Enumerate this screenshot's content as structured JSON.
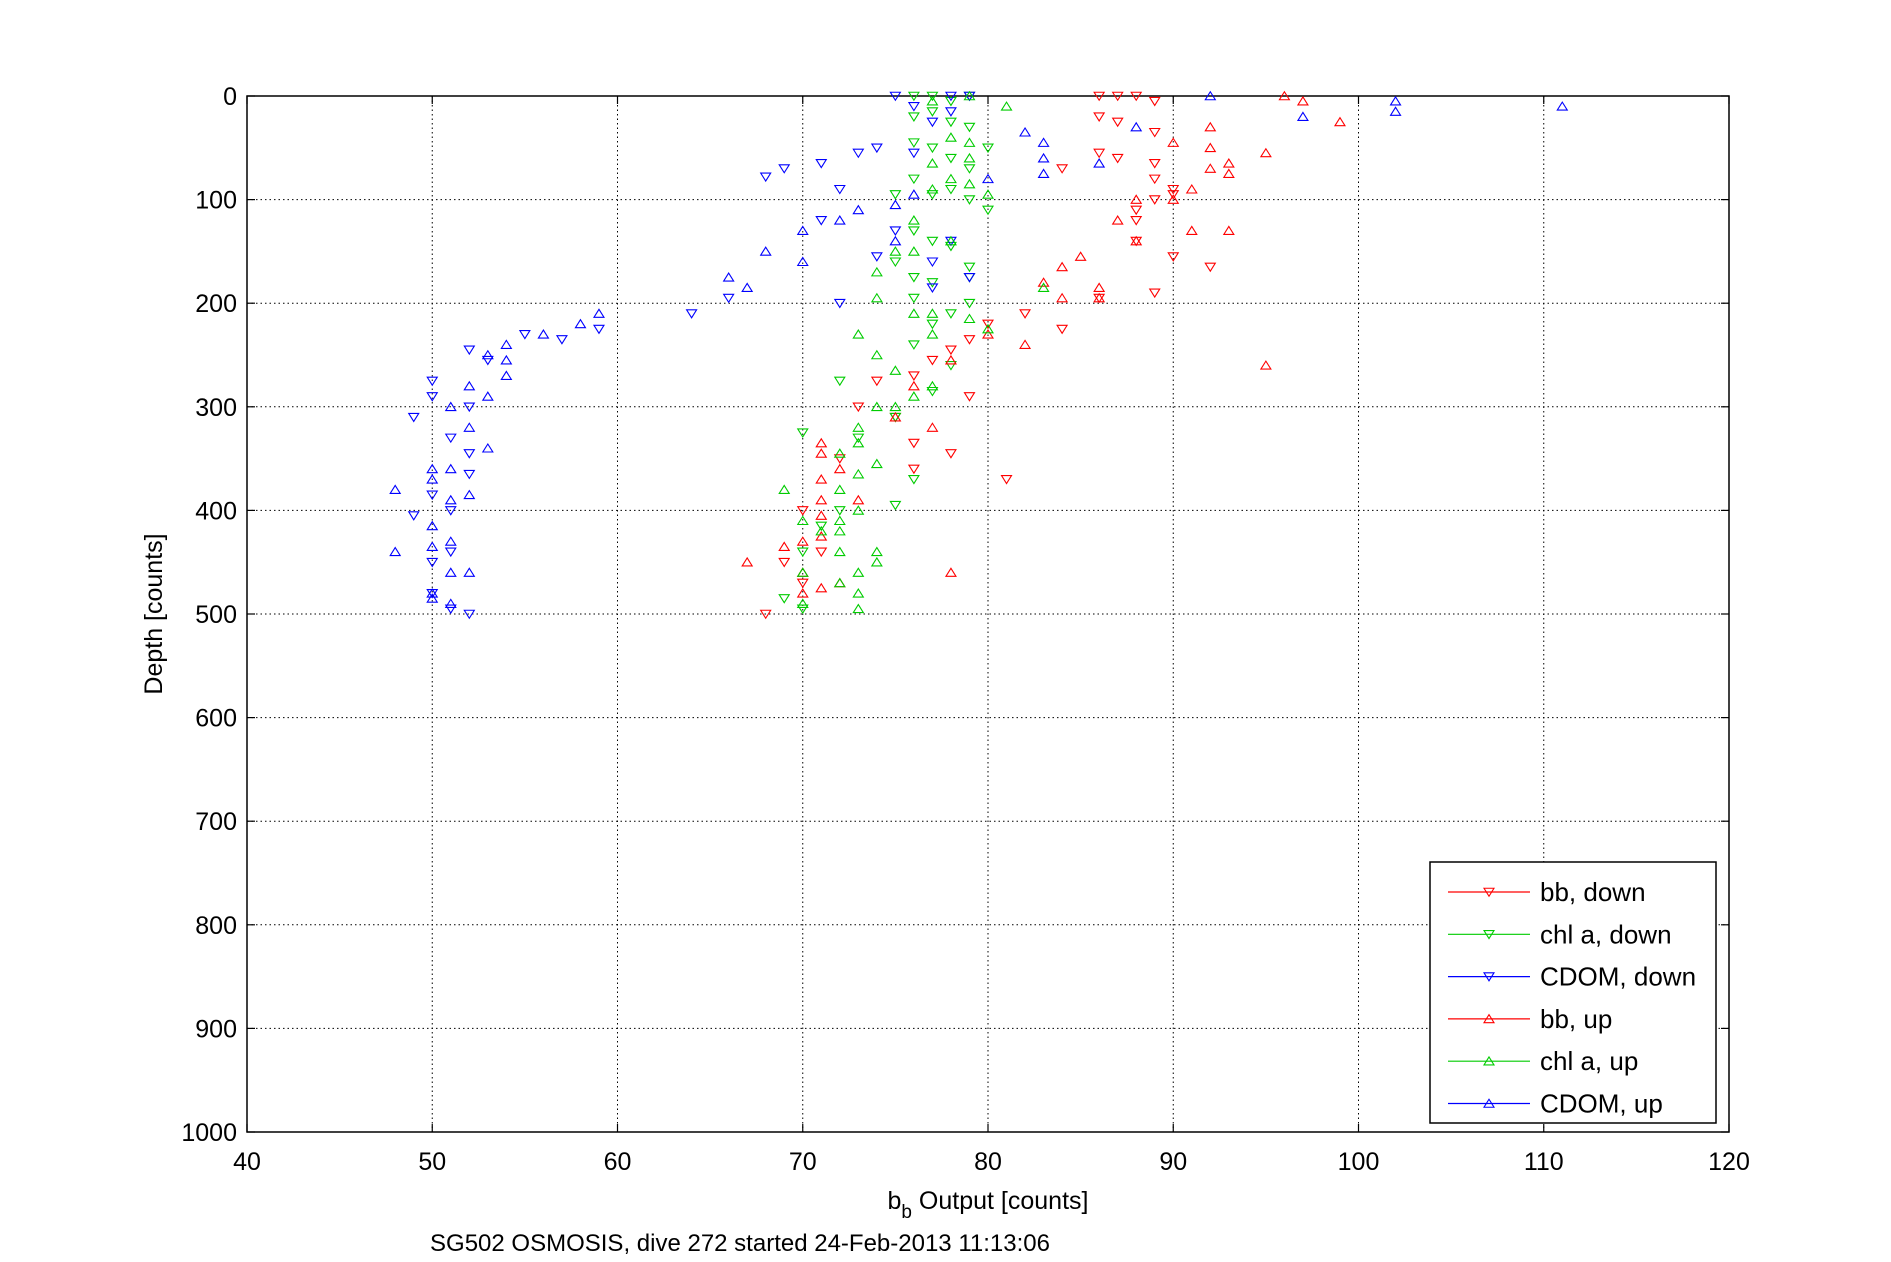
{
  "chart_data": {
    "type": "scatter",
    "title": "",
    "xlabel_main": "b",
    "xlabel_sub": "b",
    "xlabel_rest": " Output [counts]",
    "ylabel": "Depth [counts]",
    "caption": "SG502 OSMOSIS, dive 272 started 24-Feb-2013 11:13:06",
    "xlim": [
      40,
      120
    ],
    "ylim": [
      0,
      1000
    ],
    "y_reversed": true,
    "grid": true,
    "legend_position": "bottom-right",
    "xticks": [
      "40",
      "50",
      "60",
      "70",
      "80",
      "90",
      "100",
      "110",
      "120"
    ],
    "yticks": [
      "0",
      "100",
      "200",
      "300",
      "400",
      "500",
      "600",
      "700",
      "800",
      "900",
      "1000"
    ],
    "series": [
      {
        "name": "bb, down",
        "color": "#ff0000",
        "marker": "triangle-down",
        "points": [
          [
            86,
            0
          ],
          [
            87,
            0
          ],
          [
            88,
            0
          ],
          [
            89,
            5
          ],
          [
            86,
            20
          ],
          [
            87,
            25
          ],
          [
            89,
            35
          ],
          [
            86,
            55
          ],
          [
            87,
            60
          ],
          [
            89,
            65
          ],
          [
            84,
            70
          ],
          [
            89,
            80
          ],
          [
            88,
            110
          ],
          [
            90,
            90
          ],
          [
            89,
            100
          ],
          [
            90,
            95
          ],
          [
            88,
            140
          ],
          [
            89,
            190
          ],
          [
            90,
            155
          ],
          [
            92,
            165
          ],
          [
            88,
            120
          ],
          [
            86,
            195
          ],
          [
            84,
            225
          ],
          [
            82,
            210
          ],
          [
            80,
            220
          ],
          [
            79,
            235
          ],
          [
            78,
            245
          ],
          [
            76,
            270
          ],
          [
            79,
            290
          ],
          [
            77,
            255
          ],
          [
            75,
            310
          ],
          [
            76,
            335
          ],
          [
            76,
            360
          ],
          [
            78,
            345
          ],
          [
            81,
            370
          ],
          [
            74,
            275
          ],
          [
            73,
            300
          ],
          [
            72,
            350
          ],
          [
            70,
            400
          ],
          [
            71,
            440
          ],
          [
            69,
            450
          ],
          [
            68,
            500
          ],
          [
            70,
            470
          ]
        ]
      },
      {
        "name": "chl a, down",
        "color": "#00cc00",
        "marker": "triangle-down",
        "points": [
          [
            76,
            0
          ],
          [
            77,
            0
          ],
          [
            78,
            5
          ],
          [
            79,
            0
          ],
          [
            76,
            20
          ],
          [
            77,
            15
          ],
          [
            78,
            25
          ],
          [
            79,
            30
          ],
          [
            76,
            45
          ],
          [
            77,
            50
          ],
          [
            78,
            60
          ],
          [
            79,
            70
          ],
          [
            80,
            50
          ],
          [
            76,
            80
          ],
          [
            77,
            95
          ],
          [
            78,
            90
          ],
          [
            75,
            95
          ],
          [
            79,
            100
          ],
          [
            80,
            110
          ],
          [
            76,
            130
          ],
          [
            77,
            140
          ],
          [
            78,
            145
          ],
          [
            75,
            160
          ],
          [
            76,
            175
          ],
          [
            77,
            180
          ],
          [
            79,
            165
          ],
          [
            79,
            175
          ],
          [
            76,
            195
          ],
          [
            78,
            210
          ],
          [
            79,
            200
          ],
          [
            77,
            220
          ],
          [
            76,
            240
          ],
          [
            78,
            260
          ],
          [
            77,
            285
          ],
          [
            75,
            310
          ],
          [
            75,
            395
          ],
          [
            73,
            330
          ],
          [
            72,
            275
          ],
          [
            70,
            325
          ],
          [
            72,
            400
          ],
          [
            71,
            415
          ],
          [
            70,
            440
          ],
          [
            69,
            485
          ],
          [
            70,
            495
          ],
          [
            76,
            370
          ]
        ]
      },
      {
        "name": "CDOM, down",
        "color": "#0000ff",
        "marker": "triangle-down",
        "points": [
          [
            75,
            0
          ],
          [
            78,
            0
          ],
          [
            79,
            0
          ],
          [
            76,
            10
          ],
          [
            78,
            15
          ],
          [
            77,
            25
          ],
          [
            76,
            55
          ],
          [
            73,
            55
          ],
          [
            74,
            50
          ],
          [
            71,
            65
          ],
          [
            69,
            70
          ],
          [
            68,
            78
          ],
          [
            72,
            90
          ],
          [
            71,
            120
          ],
          [
            75,
            130
          ],
          [
            74,
            155
          ],
          [
            77,
            160
          ],
          [
            78,
            140
          ],
          [
            79,
            175
          ],
          [
            77,
            185
          ],
          [
            72,
            200
          ],
          [
            64,
            210
          ],
          [
            66,
            195
          ],
          [
            59,
            225
          ],
          [
            57,
            235
          ],
          [
            55,
            230
          ],
          [
            53,
            255
          ],
          [
            52,
            245
          ],
          [
            50,
            275
          ],
          [
            50,
            290
          ],
          [
            49,
            310
          ],
          [
            52,
            300
          ],
          [
            51,
            330
          ],
          [
            52,
            345
          ],
          [
            52,
            365
          ],
          [
            50,
            385
          ],
          [
            49,
            405
          ],
          [
            51,
            400
          ],
          [
            50,
            450
          ],
          [
            51,
            440
          ],
          [
            50,
            480
          ],
          [
            52,
            500
          ],
          [
            51,
            495
          ]
        ]
      },
      {
        "name": "bb, up",
        "color": "#ff0000",
        "marker": "triangle-up",
        "points": [
          [
            96,
            0
          ],
          [
            97,
            5
          ],
          [
            99,
            25
          ],
          [
            92,
            30
          ],
          [
            95,
            55
          ],
          [
            93,
            65
          ],
          [
            92,
            50
          ],
          [
            93,
            75
          ],
          [
            92,
            70
          ],
          [
            90,
            45
          ],
          [
            91,
            90
          ],
          [
            88,
            100
          ],
          [
            90,
            100
          ],
          [
            87,
            120
          ],
          [
            91,
            130
          ],
          [
            93,
            130
          ],
          [
            88,
            140
          ],
          [
            85,
            155
          ],
          [
            84,
            165
          ],
          [
            83,
            180
          ],
          [
            86,
            185
          ],
          [
            86,
            195
          ],
          [
            84,
            195
          ],
          [
            80,
            230
          ],
          [
            82,
            240
          ],
          [
            95,
            260
          ],
          [
            78,
            255
          ],
          [
            76,
            280
          ],
          [
            75,
            310
          ],
          [
            77,
            320
          ],
          [
            71,
            335
          ],
          [
            71,
            345
          ],
          [
            72,
            360
          ],
          [
            73,
            390
          ],
          [
            71,
            390
          ],
          [
            71,
            370
          ],
          [
            71,
            405
          ],
          [
            71,
            425
          ],
          [
            70,
            430
          ],
          [
            69,
            435
          ],
          [
            70,
            460
          ],
          [
            72,
            470
          ],
          [
            71,
            475
          ],
          [
            70,
            480
          ],
          [
            67,
            450
          ],
          [
            78,
            460
          ]
        ]
      },
      {
        "name": "chl a, up",
        "color": "#00cc00",
        "marker": "triangle-up",
        "points": [
          [
            79,
            0
          ],
          [
            81,
            10
          ],
          [
            77,
            5
          ],
          [
            79,
            45
          ],
          [
            78,
            40
          ],
          [
            77,
            65
          ],
          [
            79,
            60
          ],
          [
            80,
            95
          ],
          [
            79,
            85
          ],
          [
            78,
            80
          ],
          [
            77,
            90
          ],
          [
            76,
            120
          ],
          [
            76,
            150
          ],
          [
            75,
            150
          ],
          [
            74,
            170
          ],
          [
            78,
            140
          ],
          [
            76,
            210
          ],
          [
            77,
            210
          ],
          [
            77,
            230
          ],
          [
            80,
            225
          ],
          [
            83,
            185
          ],
          [
            79,
            215
          ],
          [
            74,
            195
          ],
          [
            73,
            230
          ],
          [
            74,
            250
          ],
          [
            75,
            265
          ],
          [
            77,
            280
          ],
          [
            76,
            290
          ],
          [
            75,
            300
          ],
          [
            74,
            300
          ],
          [
            73,
            320
          ],
          [
            73,
            335
          ],
          [
            72,
            345
          ],
          [
            74,
            355
          ],
          [
            73,
            365
          ],
          [
            72,
            380
          ],
          [
            73,
            400
          ],
          [
            72,
            410
          ],
          [
            72,
            420
          ],
          [
            71,
            420
          ],
          [
            69,
            380
          ],
          [
            70,
            410
          ],
          [
            72,
            440
          ],
          [
            74,
            440
          ],
          [
            73,
            460
          ],
          [
            70,
            460
          ],
          [
            74,
            450
          ],
          [
            72,
            470
          ],
          [
            73,
            480
          ],
          [
            73,
            495
          ],
          [
            70,
            490
          ]
        ]
      },
      {
        "name": "CDOM, up",
        "color": "#0000ff",
        "marker": "triangle-up",
        "points": [
          [
            92,
            0
          ],
          [
            102,
            5
          ],
          [
            102,
            15
          ],
          [
            111,
            10
          ],
          [
            97,
            20
          ],
          [
            88,
            30
          ],
          [
            86,
            65
          ],
          [
            83,
            45
          ],
          [
            83,
            60
          ],
          [
            82,
            35
          ],
          [
            83,
            75
          ],
          [
            80,
            80
          ],
          [
            76,
            95
          ],
          [
            75,
            105
          ],
          [
            73,
            110
          ],
          [
            72,
            120
          ],
          [
            75,
            140
          ],
          [
            70,
            130
          ],
          [
            70,
            160
          ],
          [
            68,
            150
          ],
          [
            67,
            185
          ],
          [
            66,
            175
          ],
          [
            59,
            210
          ],
          [
            58,
            220
          ],
          [
            56,
            230
          ],
          [
            54,
            240
          ],
          [
            54,
            255
          ],
          [
            53,
            250
          ],
          [
            54,
            270
          ],
          [
            53,
            290
          ],
          [
            52,
            280
          ],
          [
            51,
            300
          ],
          [
            52,
            320
          ],
          [
            53,
            340
          ],
          [
            51,
            360
          ],
          [
            50,
            360
          ],
          [
            50,
            370
          ],
          [
            52,
            385
          ],
          [
            48,
            380
          ],
          [
            51,
            390
          ],
          [
            51,
            430
          ],
          [
            50,
            415
          ],
          [
            50,
            435
          ],
          [
            48,
            440
          ],
          [
            51,
            460
          ],
          [
            52,
            460
          ],
          [
            50,
            480
          ],
          [
            51,
            490
          ],
          [
            50,
            485
          ]
        ]
      }
    ]
  }
}
